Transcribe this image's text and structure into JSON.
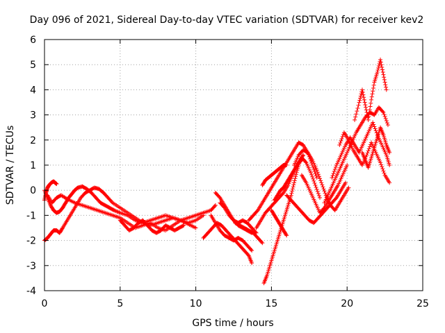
{
  "chart_data": {
    "type": "scatter",
    "title": "Day 096 of 2021, Sidereal Day-to-day VTEC variation (SDTVAR) for receiver kev2",
    "xlabel": "GPS time / hours",
    "ylabel": "SDTVAR / TECUs",
    "xlim": [
      0,
      25
    ],
    "ylim": [
      -4,
      6
    ],
    "xticks": [
      0,
      5,
      10,
      15,
      20,
      25
    ],
    "yticks": [
      -4,
      -3,
      -2,
      -1,
      0,
      1,
      2,
      3,
      4,
      5,
      6
    ],
    "grid": true,
    "marker": "+",
    "series": [
      {
        "name": "kev2",
        "color": "#ff0000",
        "tracks": [
          {
            "x": [
              0,
              0.1,
              0.2,
              0.3,
              0.45,
              0.6,
              0.7,
              0.8
            ],
            "y": [
              -0.4,
              -0.1,
              0.1,
              0.2,
              0.3,
              0.35,
              0.3,
              0.25
            ]
          },
          {
            "x": [
              0,
              0.2,
              0.4,
              0.6,
              0.8,
              1.0,
              1.2,
              1.4,
              1.6,
              1.8,
              2.0,
              2.2,
              2.5,
              2.8,
              3.1,
              3.4,
              3.7,
              4.0,
              4.3,
              4.6,
              5.0,
              5.5,
              6.0,
              6.5,
              7.0,
              7.5,
              8.0,
              8.5,
              9.0,
              9.5,
              10.0,
              10.5,
              11.0,
              11.3
            ],
            "y": [
              0,
              -0.3,
              -0.6,
              -0.8,
              -0.9,
              -0.85,
              -0.7,
              -0.5,
              -0.3,
              -0.15,
              0,
              0.1,
              0.15,
              0.05,
              -0.1,
              -0.3,
              -0.5,
              -0.6,
              -0.7,
              -0.8,
              -0.9,
              -1.0,
              -1.2,
              -1.3,
              -1.2,
              -1.1,
              -1.0,
              -1.1,
              -1.2,
              -1.1,
              -1.0,
              -0.9,
              -0.8,
              -0.6
            ]
          },
          {
            "x": [
              0,
              0.2,
              0.4,
              0.6,
              0.8,
              1.0,
              1.2,
              1.5,
              1.8,
              2.1,
              2.4,
              2.7,
              3.0,
              3.3,
              3.6,
              3.9,
              4.2,
              4.5,
              5.0,
              5.5,
              6.0,
              6.5,
              7.0,
              7.5,
              8.0,
              8.5,
              9.0,
              9.5,
              10.0,
              10.5
            ],
            "y": [
              -2.0,
              -1.9,
              -1.75,
              -1.6,
              -1.6,
              -1.7,
              -1.5,
              -1.2,
              -0.9,
              -0.6,
              -0.3,
              -0.1,
              0.0,
              0.1,
              0.05,
              -0.1,
              -0.3,
              -0.5,
              -0.7,
              -0.9,
              -1.1,
              -1.3,
              -1.4,
              -1.3,
              -1.2,
              -1.1,
              -1.2,
              -1.3,
              -1.2,
              -1.0
            ]
          },
          {
            "x": [
              0.2,
              0.5,
              0.8,
              1.1,
              1.5,
              2.0,
              2.5,
              3.0,
              3.5,
              4.0,
              4.5,
              5.0,
              5.5,
              6.0,
              6.5,
              7.0,
              7.5,
              8.0,
              8.5,
              9.0,
              9.5,
              10.0
            ],
            "y": [
              -0.2,
              -0.5,
              -0.3,
              -0.2,
              -0.35,
              -0.5,
              -0.6,
              -0.7,
              -0.8,
              -0.9,
              -1.0,
              -1.1,
              -1.3,
              -1.5,
              -1.4,
              -1.3,
              -1.5,
              -1.6,
              -1.4,
              -1.2,
              -1.35,
              -1.5
            ]
          },
          {
            "x": [
              5.0,
              5.3,
              5.6,
              5.9,
              6.2,
              6.5,
              6.8,
              7.1,
              7.4,
              7.7,
              8.0,
              8.3,
              8.6,
              8.9,
              9.2
            ],
            "y": [
              -1.2,
              -1.4,
              -1.6,
              -1.5,
              -1.3,
              -1.2,
              -1.4,
              -1.6,
              -1.7,
              -1.6,
              -1.4,
              -1.5,
              -1.6,
              -1.5,
              -1.4
            ]
          },
          {
            "x": [
              10.5,
              10.8,
              11.1,
              11.4,
              11.7,
              12.0,
              12.3,
              12.6,
              12.9,
              13.2,
              13.5,
              13.7
            ],
            "y": [
              -1.9,
              -1.7,
              -1.5,
              -1.3,
              -1.4,
              -1.6,
              -1.8,
              -2.0,
              -2.2,
              -2.4,
              -2.6,
              -2.9
            ]
          },
          {
            "x": [
              11.0,
              11.3,
              11.6,
              11.9,
              12.2,
              12.5,
              12.8,
              13.1,
              13.4,
              13.7
            ],
            "y": [
              -1.0,
              -1.3,
              -1.6,
              -1.8,
              -1.9,
              -2.0,
              -1.9,
              -2.0,
              -2.2,
              -2.4
            ]
          },
          {
            "x": [
              11.3,
              11.6,
              11.9,
              12.2,
              12.5,
              12.8,
              13.1,
              13.4,
              13.7
            ],
            "y": [
              -0.1,
              -0.3,
              -0.6,
              -0.9,
              -1.2,
              -1.4,
              -1.5,
              -1.6,
              -1.7
            ]
          },
          {
            "x": [
              11.6,
              11.9,
              12.2,
              12.5,
              12.8,
              13.1,
              13.4,
              13.7,
              14.0
            ],
            "y": [
              -0.5,
              -0.7,
              -1.0,
              -1.2,
              -1.3,
              -1.2,
              -1.3,
              -1.5,
              -1.7
            ]
          },
          {
            "x": [
              12.6,
              12.9,
              13.2,
              13.5,
              13.8,
              14.1,
              14.4
            ],
            "y": [
              -1.3,
              -1.4,
              -1.5,
              -1.6,
              -1.7,
              -1.9,
              -2.1
            ]
          },
          {
            "x": [
              13.5,
              13.8,
              14.1,
              14.4,
              14.7,
              15.0,
              15.3,
              15.6,
              15.9,
              16.2,
              16.5,
              16.8,
              17.1,
              17.4,
              17.7,
              18.0
            ],
            "y": [
              -1.2,
              -1.0,
              -0.8,
              -0.5,
              -0.2,
              0.1,
              0.4,
              0.7,
              1.0,
              1.3,
              1.6,
              1.9,
              1.8,
              1.5,
              1.0,
              0.5
            ]
          },
          {
            "x": [
              14.0,
              14.3,
              14.6,
              14.9,
              15.2,
              15.5,
              15.8,
              16.1,
              16.4,
              16.7,
              17.0,
              17.3,
              17.6,
              17.9,
              18.2
            ],
            "y": [
              -1.5,
              -1.2,
              -0.9,
              -0.7,
              -0.5,
              -0.3,
              -0.1,
              0.2,
              0.6,
              1.0,
              1.3,
              1.1,
              0.7,
              0.2,
              -0.3
            ]
          },
          {
            "x": [
              14.5,
              14.7,
              14.9,
              15.1,
              15.3,
              15.5,
              15.7,
              15.9,
              16.1,
              16.3,
              16.5,
              16.7,
              16.9,
              17.1
            ],
            "y": [
              -3.7,
              -3.4,
              -3.0,
              -2.6,
              -2.2,
              -1.8,
              -1.4,
              -1.0,
              -0.6,
              -0.2,
              0.3,
              0.8,
              1.2,
              1.4
            ]
          },
          {
            "x": [
              14.4,
              14.6,
              14.8,
              15.0,
              15.2,
              15.4,
              15.6,
              15.8,
              16.0
            ],
            "y": [
              0.2,
              0.4,
              0.5,
              0.6,
              0.7,
              0.8,
              0.9,
              1.0,
              1.0
            ]
          },
          {
            "x": [
              15.0,
              15.2,
              15.4,
              15.6,
              15.8,
              16.0
            ],
            "y": [
              -0.8,
              -1.0,
              -1.2,
              -1.4,
              -1.6,
              -1.8
            ]
          },
          {
            "x": [
              15.2,
              15.4,
              15.6,
              15.8,
              16.0,
              16.2,
              16.4,
              16.6,
              16.8,
              17.0
            ],
            "y": [
              -0.4,
              -0.2,
              0.0,
              0.1,
              0.3,
              0.5,
              0.7,
              0.9,
              1.1,
              1.2
            ]
          },
          {
            "x": [
              16.0,
              16.3,
              16.6,
              16.9,
              17.2,
              17.5,
              17.8,
              18.1,
              18.4,
              18.7,
              19.0,
              19.3,
              19.6,
              19.9
            ],
            "y": [
              -0.2,
              -0.4,
              -0.6,
              -0.8,
              -1.0,
              -1.2,
              -1.3,
              -1.1,
              -0.9,
              -0.7,
              -0.5,
              -0.3,
              0.0,
              0.3
            ]
          },
          {
            "x": [
              16.5,
              16.8,
              17.1,
              17.4,
              17.7,
              18.0,
              18.3,
              18.6,
              18.9,
              19.2,
              19.5,
              19.8,
              20.1
            ],
            "y": [
              1.0,
              1.4,
              1.6,
              1.5,
              1.2,
              0.8,
              0.3,
              -0.2,
              -0.6,
              -0.8,
              -0.5,
              -0.2,
              0.1
            ]
          },
          {
            "x": [
              17.0,
              17.3,
              17.6,
              17.9,
              18.2,
              18.5,
              18.8,
              19.1,
              19.4,
              19.7,
              20.0
            ],
            "y": [
              0.6,
              0.3,
              -0.1,
              -0.5,
              -0.9,
              -0.7,
              -0.4,
              -0.1,
              0.2,
              0.6,
              1.0
            ]
          },
          {
            "x": [
              18.5,
              18.8,
              19.1,
              19.4,
              19.7,
              20.0,
              20.3,
              20.6,
              20.9,
              21.2,
              21.5,
              21.8,
              22.1,
              22.4,
              22.7
            ],
            "y": [
              -0.5,
              -0.1,
              0.3,
              0.7,
              1.1,
              1.5,
              1.9,
              2.3,
              2.6,
              2.9,
              3.1,
              3.0,
              3.3,
              3.1,
              2.6
            ]
          },
          {
            "x": [
              19.0,
              19.3,
              19.6,
              19.9,
              20.2,
              20.5,
              20.8,
              21.1,
              21.4,
              21.7,
              22.0,
              22.3,
              22.6,
              22.8
            ],
            "y": [
              0.5,
              1.0,
              1.4,
              1.8,
              2.1,
              1.8,
              1.5,
              1.9,
              2.3,
              2.7,
              2.2,
              1.8,
              1.4,
              1.0
            ]
          },
          {
            "x": [
              19.5,
              19.8,
              20.1,
              20.4,
              20.7,
              21.0,
              21.3,
              21.6,
              21.9,
              22.2,
              22.5,
              22.8
            ],
            "y": [
              1.8,
              2.3,
              2.0,
              1.6,
              1.3,
              1.0,
              1.4,
              1.9,
              1.5,
              1.1,
              0.6,
              0.3
            ]
          },
          {
            "x": [
              20.5,
              20.8,
              21.0,
              21.2,
              21.4,
              21.6,
              21.8,
              22.0,
              22.2,
              22.4,
              22.6
            ],
            "y": [
              2.8,
              3.5,
              4.0,
              3.4,
              2.8,
              3.6,
              4.3,
              4.7,
              5.2,
              4.6,
              4.0
            ]
          },
          {
            "x": [
              21.0,
              21.2,
              21.4,
              21.6,
              21.8,
              22.0,
              22.2,
              22.4,
              22.6,
              22.8
            ],
            "y": [
              1.5,
              1.2,
              0.9,
              1.3,
              1.7,
              2.1,
              2.5,
              2.2,
              1.8,
              1.5
            ]
          }
        ]
      }
    ]
  }
}
